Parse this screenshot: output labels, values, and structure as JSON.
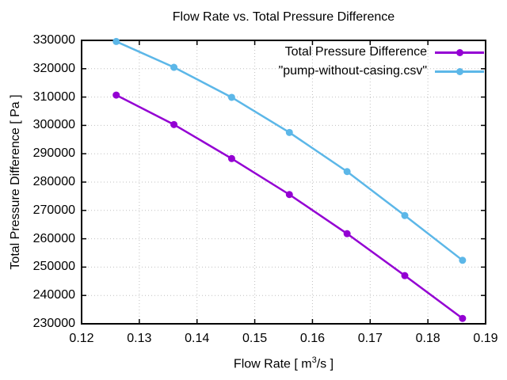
{
  "chart_data": {
    "type": "line",
    "title": "Flow Rate vs. Total Pressure Difference",
    "xlabel_prefix": "Flow Rate [ m",
    "xlabel_sup": "3",
    "xlabel_suffix": "/s ]",
    "ylabel": "Total Pressure Difference [ Pa ]",
    "xlim": [
      0.12,
      0.19
    ],
    "ylim": [
      230000,
      330000
    ],
    "x_ticks": [
      0.12,
      0.13,
      0.14,
      0.15,
      0.16,
      0.17,
      0.18,
      0.19
    ],
    "y_ticks": [
      230000,
      240000,
      250000,
      260000,
      270000,
      280000,
      290000,
      300000,
      310000,
      320000,
      330000
    ],
    "grid": true,
    "legend_position": "top-right-inside",
    "x": [
      0.126,
      0.136,
      0.146,
      0.156,
      0.166,
      0.176,
      0.186
    ],
    "series": [
      {
        "name": "Total Pressure Difference",
        "color": "#9400d3",
        "values": [
          310700,
          300300,
          288300,
          275600,
          261800,
          247000,
          231900
        ]
      },
      {
        "name": "\"pump-without-casing.csv\"",
        "color": "#5cb7e8",
        "values": [
          329600,
          320500,
          309900,
          297500,
          283700,
          268200,
          252400
        ]
      }
    ],
    "colors": {
      "grid": "#c0c0c0",
      "border": "#000000",
      "text": "#000000",
      "background": "#ffffff"
    }
  }
}
